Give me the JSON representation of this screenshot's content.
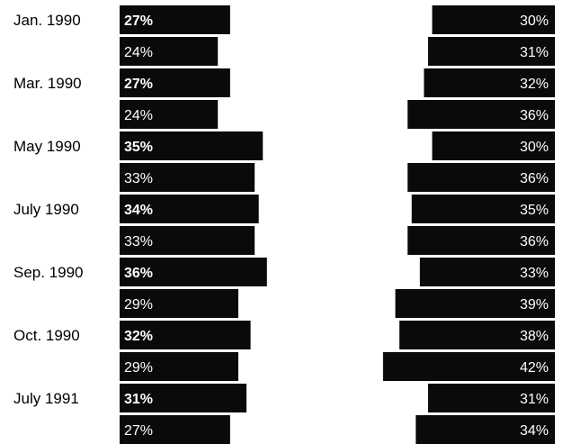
{
  "chart_data": {
    "type": "bar",
    "title": "",
    "xlabel": "",
    "ylabel": "",
    "categories": [
      "Jan. 1990",
      "Mar. 1990",
      "May 1990",
      "July 1990",
      "Sep. 1990",
      "Oct. 1990",
      "July 1991"
    ],
    "left_bars": {
      "direction": "right",
      "series": [
        {
          "name": "",
          "values": [
            27,
            27,
            35,
            34,
            36,
            32,
            31
          ]
        },
        {
          "name": "",
          "values": [
            24,
            24,
            33,
            33,
            29,
            29,
            27
          ]
        }
      ]
    },
    "right_bars": {
      "direction": "left",
      "series": [
        {
          "name": "",
          "values": [
            30,
            32,
            30,
            35,
            33,
            38,
            31
          ]
        },
        {
          "name": "",
          "values": [
            31,
            36,
            36,
            36,
            39,
            42,
            34
          ]
        }
      ]
    },
    "value_suffix": "%",
    "legend": "none",
    "grid": false,
    "colors": {
      "bar": "#0a0a0a",
      "label_on_bar": "#ffffff",
      "text": "#000000",
      "background": "#ffffff"
    }
  }
}
